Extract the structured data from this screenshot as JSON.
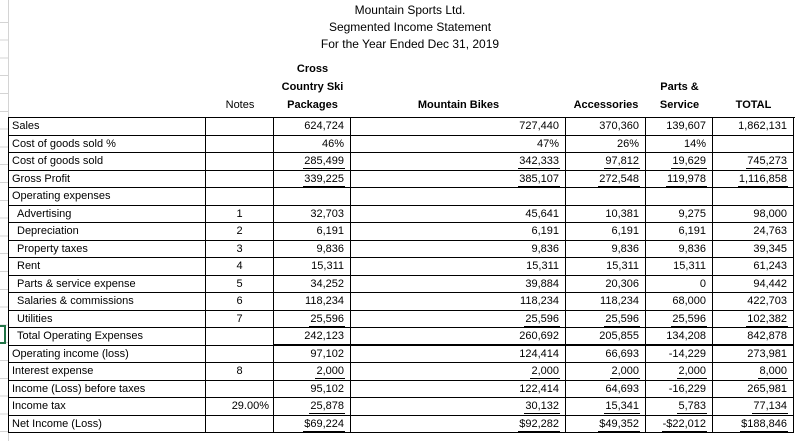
{
  "titles": {
    "company": "Mountain Sports Ltd.",
    "statement": "Segmented Income Statement",
    "period": "For the Year Ended Dec 31, 2019"
  },
  "columns": {
    "label": "",
    "notes": "Notes",
    "ccsp": [
      "Cross",
      "Country Ski",
      "Packages"
    ],
    "mountain_bikes": "Mountain Bikes",
    "accessories": "Accessories",
    "parts_service": [
      "Parts &",
      "Service"
    ],
    "total": "TOTAL"
  },
  "rows": [
    {
      "label": "Sales",
      "notes": "",
      "values": [
        "624,724",
        "727,440",
        "370,360",
        "139,607",
        "1,862,131"
      ]
    },
    {
      "label": "Cost of goods sold %",
      "notes": "",
      "values": [
        "46%",
        "47%",
        "26%",
        "14%",
        ""
      ]
    },
    {
      "label": "Cost of goods sold",
      "notes": "",
      "underline": "single",
      "values": [
        "285,499",
        "342,333",
        "97,812",
        "19,629",
        "745,273"
      ]
    },
    {
      "label": "Gross Profit",
      "notes": "",
      "underline": "single",
      "values": [
        "339,225",
        "385,107",
        "272,548",
        "119,978",
        "1,116,858"
      ]
    },
    {
      "label": "Operating expenses",
      "notes": "",
      "values": [
        "",
        "",
        "",
        "",
        ""
      ]
    },
    {
      "label": "Advertising",
      "indent": true,
      "notes": "1",
      "values": [
        "32,703",
        "45,641",
        "10,381",
        "9,275",
        "98,000"
      ]
    },
    {
      "label": "Depreciation",
      "indent": true,
      "notes": "2",
      "values": [
        "6,191",
        "6,191",
        "6,191",
        "6,191",
        "24,763"
      ]
    },
    {
      "label": "Property taxes",
      "indent": true,
      "notes": "3",
      "values": [
        "9,836",
        "9,836",
        "9,836",
        "9,836",
        "39,345"
      ]
    },
    {
      "label": "Rent",
      "indent": true,
      "notes": "4",
      "values": [
        "15,311",
        "15,311",
        "15,311",
        "15,311",
        "61,243"
      ]
    },
    {
      "label": "Parts & service expense",
      "indent": true,
      "notes": "5",
      "values": [
        "34,252",
        "39,884",
        "20,306",
        "0",
        "94,442"
      ]
    },
    {
      "label": "Salaries & commissions",
      "indent": true,
      "notes": "6",
      "values": [
        "118,234",
        "118,234",
        "118,234",
        "68,000",
        "422,703"
      ]
    },
    {
      "label": "Utilities",
      "indent": true,
      "notes": "7",
      "underline": "single",
      "values": [
        "25,596",
        "25,596",
        "25,596",
        "25,596",
        "102,382"
      ]
    },
    {
      "label": "Total Operating Expenses",
      "indent": true,
      "notes": "",
      "thick_bottom": true,
      "values": [
        "242,123",
        "260,692",
        "205,855",
        "134,208",
        "842,878"
      ]
    },
    {
      "label": "Operating income (loss)",
      "notes": "",
      "values": [
        "97,102",
        "124,414",
        "66,693",
        "-14,229",
        "273,981"
      ]
    },
    {
      "label": "Interest expense",
      "notes": "8",
      "underline": "single",
      "values": [
        "2,000",
        "2,000",
        "2,000",
        "2,000",
        "8,000"
      ]
    },
    {
      "label": "Income (Loss) before taxes",
      "notes": "",
      "values": [
        "95,102",
        "122,414",
        "64,693",
        "-16,229",
        "265,981"
      ]
    },
    {
      "label": "Income tax",
      "notes": "29.00%",
      "notes_align": "right",
      "underline": "single",
      "values": [
        "25,878",
        "30,132",
        "15,341",
        "5,783",
        "77,134"
      ]
    },
    {
      "label": "Net Income (Loss)",
      "notes": "",
      "underline": "double",
      "values": [
        "$69,224",
        "$92,282",
        "$49,352",
        "-$22,012",
        "$188,846"
      ]
    }
  ],
  "colors": {
    "grid_border": "#000000",
    "sheet_gridline": "#d4d4d4",
    "selection_green": "#217346"
  }
}
